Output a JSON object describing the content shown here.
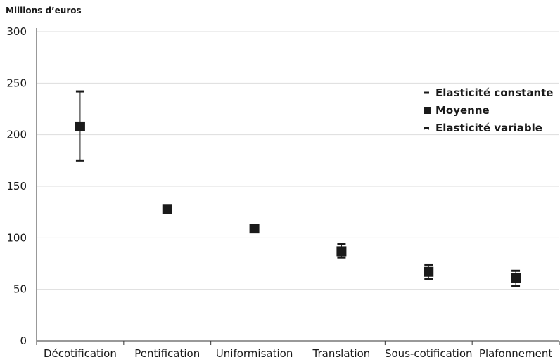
{
  "chart_data": {
    "type": "scatter",
    "ylabel": "Millions d’euros",
    "ylim": [
      0,
      300
    ],
    "yticks": [
      0,
      50,
      100,
      150,
      200,
      250,
      300
    ],
    "grid": true,
    "legend_position": "top-right",
    "categories": [
      "Décotification",
      "Pentification",
      "Uniformisation",
      "Translation",
      "Sous-cotification",
      "Plafonnement"
    ],
    "series": [
      {
        "name": "Elasticité constante",
        "marker": "dash-high",
        "values": [
          242,
          128,
          109,
          94,
          74,
          68
        ]
      },
      {
        "name": "Moyenne",
        "marker": "square",
        "values": [
          208,
          128,
          109,
          87,
          67,
          61
        ]
      },
      {
        "name": "Elasticité variable",
        "marker": "dash-low",
        "values": [
          175,
          128,
          109,
          81,
          60,
          53
        ]
      }
    ],
    "colors": {
      "marker": "#1a1a1a",
      "grid": "#dddddd",
      "axis": "#333333",
      "background": "#ffffff"
    }
  }
}
